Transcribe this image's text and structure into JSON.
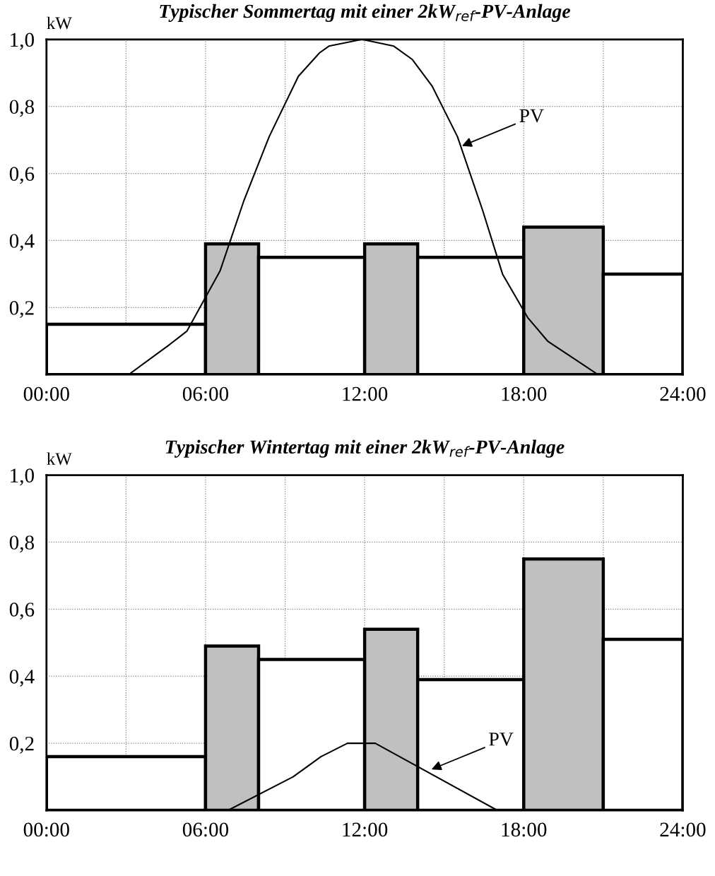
{
  "chart_data": [
    {
      "type": "histogram",
      "title": "Typischer Sommertag mit einer 2kW$_{ref}$-PV-Anlage",
      "ylabel": "kW",
      "bins": [
        0,
        6,
        8,
        12,
        14,
        18,
        21,
        24
      ],
      "values": [
        0.15,
        0.39,
        0.35,
        0.39,
        0.35,
        0.44,
        0.3
      ],
      "colors": [
        "#ffffff",
        "#c0c0c0",
        "#ffffff",
        "#c0c0c0",
        "#ffffff",
        "#c0c0c0",
        "#ffffff"
      ],
      "xlim": [
        0,
        24
      ],
      "ylim": [
        0,
        1.0
      ],
      "xticks": [
        {
          "value": 0,
          "label": "00:00"
        },
        {
          "value": 3,
          "label": null
        },
        {
          "value": 6,
          "label": "06:00"
        },
        {
          "value": 9,
          "label": null
        },
        {
          "value": 12,
          "label": "12:00"
        },
        {
          "value": 15,
          "label": null
        },
        {
          "value": 18,
          "label": "18:00"
        },
        {
          "value": 21,
          "label": null
        },
        {
          "value": 24,
          "label": "24:00"
        }
      ],
      "yticks": [
        {
          "value": 0.2,
          "label": "0,2"
        },
        {
          "value": 0.4,
          "label": "0,4"
        },
        {
          "value": 0.6,
          "label": "0,6"
        },
        {
          "value": 0.8,
          "label": "0,8"
        },
        {
          "value": 1.0,
          "label": "1,0"
        }
      ],
      "grid": true,
      "series": [
        {
          "type": "line",
          "color": "#000000",
          "x": [
            3.1,
            4.65,
            5.3,
            6.55,
            7.45,
            8.4,
            9.5,
            10.3,
            10.65,
            11.9,
            13.1,
            13.8,
            14.55,
            15.5,
            16.45,
            17.2,
            18.15,
            18.9,
            20.8
          ],
          "values": [
            0,
            0.09,
            0.13,
            0.31,
            0.52,
            0.71,
            0.89,
            0.96,
            0.98,
            1.0,
            0.98,
            0.94,
            0.86,
            0.71,
            0.49,
            0.3,
            0.17,
            0.1,
            0
          ]
        }
      ],
      "annotations": [
        {
          "text": "PV",
          "x": 15.6,
          "y": 0.68
        }
      ]
    },
    {
      "type": "histogram",
      "title": "Typischer Wintertag mit einer 2kW$_{ref}$-PV-Anlage",
      "ylabel": "kW",
      "bins": [
        0,
        6,
        8,
        12,
        14,
        18,
        21,
        24
      ],
      "values": [
        0.16,
        0.49,
        0.45,
        0.54,
        0.39,
        0.75,
        0.51
      ],
      "colors": [
        "#ffffff",
        "#c0c0c0",
        "#ffffff",
        "#c0c0c0",
        "#ffffff",
        "#c0c0c0",
        "#ffffff"
      ],
      "xlim": [
        0,
        24
      ],
      "ylim": [
        0,
        1.0
      ],
      "xticks": [
        {
          "value": 0,
          "label": "00:00"
        },
        {
          "value": 3,
          "label": null
        },
        {
          "value": 6,
          "label": "06:00"
        },
        {
          "value": 9,
          "label": null
        },
        {
          "value": 12,
          "label": "12:00"
        },
        {
          "value": 15,
          "label": null
        },
        {
          "value": 18,
          "label": "18:00"
        },
        {
          "value": 21,
          "label": null
        },
        {
          "value": 24,
          "label": "24:00"
        }
      ],
      "yticks": [
        {
          "value": 0.2,
          "label": "0,2"
        },
        {
          "value": 0.4,
          "label": "0,4"
        },
        {
          "value": 0.6,
          "label": "0,6"
        },
        {
          "value": 0.8,
          "label": "0,8"
        },
        {
          "value": 1.0,
          "label": "1,0"
        }
      ],
      "grid": true,
      "series": [
        {
          "type": "line",
          "color": "#000000",
          "x": [
            6.85,
            9.3,
            10.35,
            11.35,
            12.4,
            17.0
          ],
          "values": [
            0,
            0.1,
            0.16,
            0.2,
            0.2,
            0
          ]
        }
      ],
      "annotations": [
        {
          "text": "PV",
          "x": 14.45,
          "y": 0.12
        }
      ]
    }
  ]
}
